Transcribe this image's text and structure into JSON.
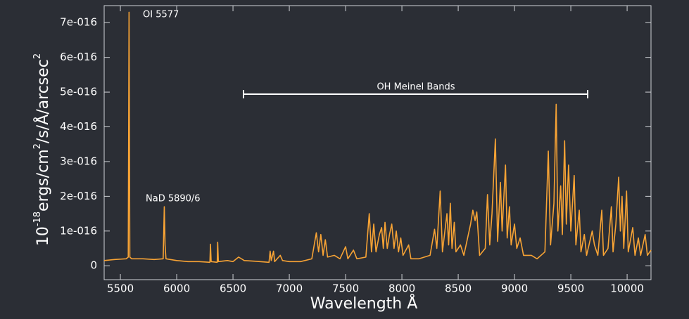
{
  "chart_data": {
    "type": "line",
    "xlabel": "Wavelength Å",
    "ylabel_parts": [
      "10",
      "-18",
      "ergs/cm",
      "2",
      "/s/Å/arcsec",
      "2"
    ],
    "annotations": [
      "OI 5577",
      "NaD 5890/6",
      "OH Meinel Bands"
    ],
    "xlim": [
      5356,
      10212
    ],
    "ylim": [
      -4e-17,
      7.49e-16
    ],
    "xticks": [
      5500,
      6000,
      6500,
      7000,
      7500,
      8000,
      8500,
      9000,
      9500,
      10000
    ],
    "yticks": [
      0,
      {
        "value": 1e-16,
        "label": "1e-016"
      },
      {
        "value": 2e-16,
        "label": "2e-016"
      },
      {
        "value": 3e-16,
        "label": "3e-016"
      },
      {
        "value": 4e-16,
        "label": "4e-016"
      },
      {
        "value": 5e-16,
        "label": "5e-016"
      },
      {
        "value": 6e-16,
        "label": "6e-016"
      },
      {
        "value": 7e-16,
        "label": "7e-016"
      }
    ],
    "grid": false,
    "series": [
      {
        "color": "#f7a335",
        "x": [
          5356,
          5450,
          5550,
          5570,
          5577,
          5584,
          5600,
          5700,
          5800,
          5880,
          5890,
          5897,
          5905,
          6000,
          6100,
          6200,
          6295,
          6300,
          6306,
          6360,
          6364,
          6370,
          6450,
          6500,
          6550,
          6600,
          6700,
          6820,
          6830,
          6840,
          6860,
          6870,
          6920,
          6940,
          7000,
          7100,
          7200,
          7240,
          7260,
          7280,
          7300,
          7320,
          7340,
          7400,
          7450,
          7500,
          7520,
          7570,
          7600,
          7680,
          7710,
          7730,
          7750,
          7770,
          7800,
          7820,
          7835,
          7850,
          7870,
          7890,
          7910,
          7930,
          7950,
          7970,
          7990,
          8010,
          8060,
          8080,
          8150,
          8250,
          8290,
          8310,
          8340,
          8360,
          8400,
          8415,
          8430,
          8445,
          8465,
          8480,
          8520,
          8550,
          8610,
          8630,
          8650,
          8665,
          8690,
          8740,
          8760,
          8780,
          8800,
          8830,
          8850,
          8875,
          8890,
          8920,
          8935,
          8955,
          8970,
          9000,
          9020,
          9050,
          9080,
          9150,
          9200,
          9270,
          9300,
          9320,
          9350,
          9370,
          9385,
          9410,
          9425,
          9445,
          9460,
          9480,
          9500,
          9530,
          9545,
          9575,
          9590,
          9620,
          9640,
          9690,
          9710,
          9740,
          9775,
          9790,
          9830,
          9860,
          9875,
          9900,
          9925,
          9940,
          9955,
          9970,
          9995,
          10010,
          10050,
          10070,
          10100,
          10120,
          10160,
          10180,
          10212
        ],
        "values": [
          1.5e-17,
          1.8e-17,
          2e-17,
          2.5e-17,
          7.3e-16,
          2.5e-17,
          2e-17,
          2e-17,
          1.8e-17,
          2e-17,
          1.7e-16,
          6e-17,
          2e-17,
          1.5e-17,
          1.2e-17,
          1.2e-17,
          1e-17,
          6.2e-17,
          1.2e-17,
          1e-17,
          6.8e-17,
          1.2e-17,
          1.5e-17,
          1.2e-17,
          2.5e-17,
          1.5e-17,
          1.3e-17,
          1e-17,
          4.2e-17,
          1.5e-17,
          4.2e-17,
          1.2e-17,
          3e-17,
          1.5e-17,
          1.2e-17,
          1.2e-17,
          2e-17,
          9.5e-17,
          4e-17,
          9e-17,
          3e-17,
          7.5e-17,
          2.5e-17,
          3e-17,
          2e-17,
          5.5e-17,
          2e-17,
          4.5e-17,
          2e-17,
          2.5e-17,
          1.5e-16,
          4e-17,
          1.2e-16,
          4e-17,
          9e-17,
          1.1e-16,
          5e-17,
          1.25e-16,
          5e-17,
          9e-17,
          1.2e-16,
          5e-17,
          1e-16,
          4e-17,
          8e-17,
          3e-17,
          6e-17,
          2e-17,
          2e-17,
          3e-17,
          1.05e-16,
          5e-17,
          2.15e-16,
          4e-17,
          1.5e-16,
          6e-17,
          1.8e-16,
          5e-17,
          1.25e-16,
          4e-17,
          6e-17,
          3e-17,
          1.2e-16,
          1.6e-16,
          1.3e-16,
          1.55e-16,
          3e-17,
          5e-17,
          2.05e-16,
          6e-17,
          1.5e-16,
          3.65e-16,
          7e-17,
          2.4e-16,
          1e-16,
          2.9e-16,
          8e-17,
          1.7e-16,
          6e-17,
          1.2e-16,
          5e-17,
          8e-17,
          3e-17,
          3e-17,
          2e-17,
          4e-17,
          3.3e-16,
          6e-17,
          1.8e-16,
          4.65e-16,
          1e-16,
          2.3e-16,
          9e-17,
          3.6e-16,
          1.2e-16,
          2.9e-16,
          1e-16,
          2.6e-16,
          6e-17,
          1.6e-16,
          4e-17,
          9e-17,
          3e-17,
          1e-16,
          6e-17,
          3e-17,
          1.6e-16,
          3e-17,
          5e-17,
          1.7e-16,
          4e-17,
          1.2e-16,
          2.55e-16,
          1e-16,
          2e-16,
          5e-17,
          2.15e-16,
          4e-17,
          1.1e-16,
          3e-17,
          8e-17,
          3e-17,
          9e-17,
          3e-17,
          4.5e-17
        ]
      }
    ]
  }
}
